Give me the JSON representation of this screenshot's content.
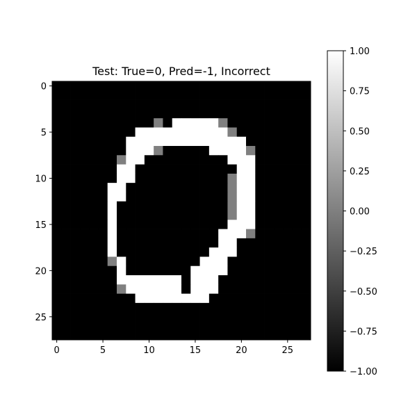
{
  "chart_data": {
    "type": "heatmap",
    "title": "Test: True=0, Pred=-1, Incorrect",
    "xlabel": "",
    "ylabel": "",
    "colormap": "gray",
    "value_range": [
      -1,
      1
    ],
    "grid_size": [
      28,
      28
    ],
    "x_ticks": [
      0,
      5,
      10,
      15,
      20,
      25
    ],
    "x_tick_labels": [
      "0",
      "5",
      "10",
      "15",
      "20",
      "25"
    ],
    "y_ticks": [
      0,
      5,
      10,
      15,
      20,
      25
    ],
    "y_tick_labels": [
      "0",
      "5",
      "10",
      "15",
      "20",
      "25"
    ],
    "colorbar_ticks": [
      1.0,
      0.75,
      0.5,
      0.25,
      0.0,
      -0.25,
      -0.5,
      -0.75,
      -1.0
    ],
    "colorbar_tick_labels": [
      "1.00",
      "0.75",
      "0.50",
      "0.25",
      "0.00",
      "−0.25",
      "−0.50",
      "−0.75",
      "−1.00"
    ],
    "grid_encoding": "'.' = -1 (black), '#' = 1 (white), 'g' = 0 (gray)",
    "grid": [
      "............................",
      "............................",
      "............................",
      "............................",
      "...........g.#####g.........",
      ".........##########g........",
      "........#############.......",
      "........###g.....####g......",
      ".......g##.........###......",
      ".......##...........##......",
      ".......##..........g##......",
      "......##...........g##......",
      "......##...........g##......",
      "......#............g##......",
      "......#............g##......",
      "......#............###......",
      "......#...........###g......",
      "......#...........##........",
      "......#..........###........",
      "......g#........###.........",
      ".......#.......####.........",
      ".......#######.###..........",
      ".......g######.###..........",
      ".........########...........",
      "............................",
      "............................",
      "............................",
      "............................"
    ]
  }
}
